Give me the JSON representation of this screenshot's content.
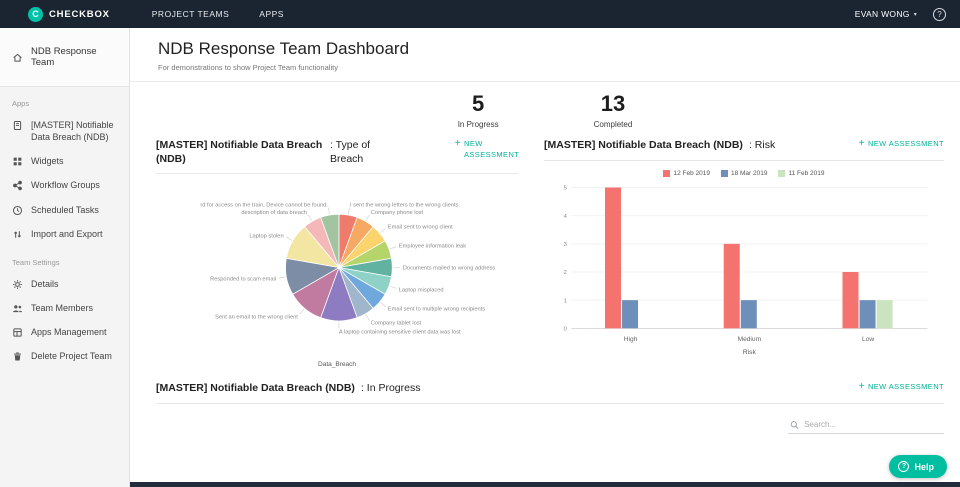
{
  "theme": {
    "accent": "#00b39b",
    "topbar_bg": "#1b2531",
    "sidebar_bg": "#f4f4f5"
  },
  "ui": {
    "plus": "+",
    "caret": "▾",
    "question": "?",
    "logo_letter": "C"
  },
  "topbar": {
    "brand": "CHECKBOX",
    "nav_items": [
      {
        "label": "PROJECT TEAMS"
      },
      {
        "label": "APPS"
      }
    ],
    "user": "EVAN WONG"
  },
  "sidebar": {
    "team": {
      "label": "NDB Response Team"
    },
    "sections": [
      {
        "label": "Apps",
        "items": [
          {
            "label": "[MASTER] Notifiable Data Breach (NDB)"
          },
          {
            "label": "Widgets"
          },
          {
            "label": "Workflow Groups"
          },
          {
            "label": "Scheduled Tasks"
          },
          {
            "label": "Import and Export"
          }
        ]
      },
      {
        "label": "Team Settings",
        "items": [
          {
            "label": "Details"
          },
          {
            "label": "Team Members"
          },
          {
            "label": "Apps Management"
          },
          {
            "label": "Delete Project Team"
          }
        ]
      }
    ]
  },
  "header": {
    "title": "NDB Response Team Dashboard",
    "subtitle": "For demonstrations to show Project Team functionality"
  },
  "stats": [
    {
      "value": "5",
      "label": "In Progress"
    },
    {
      "value": "13",
      "label": "Completed"
    }
  ],
  "panels": {
    "type_of_breach": {
      "title_bold": "[MASTER] Notifiable Data Breach (NDB)",
      "title_rest": ": Type of Breach",
      "action": "NEW ASSESSMENT"
    },
    "risk": {
      "title_bold": "[MASTER] Notifiable Data Breach (NDB)",
      "title_rest": ": Risk",
      "action": "NEW ASSESSMENT"
    },
    "in_progress": {
      "title_bold": "[MASTER] Notifiable Data Breach (NDB)",
      "title_rest": ": In Progress",
      "action": "NEW ASSESSMENT"
    }
  },
  "footer": {
    "search_placeholder": "Search...",
    "help_label": "Help"
  },
  "chart_data": [
    {
      "type": "pie",
      "title": "[MASTER] Notifiable Data Breach (NDB): Type of Breach",
      "xlabel": "Data_Breach",
      "labels": [
        "I sent the wrong letters to the wrong clients.",
        "Company phone lost",
        "Email sent to wrong client",
        "Employee information leak",
        "Documents mailed to wrong address",
        "Laptop misplaced",
        "Email sent to multiple wrong recipients",
        "Company tablet lost",
        "A laptop containing sensitive client data was lost",
        "Sent an email to the wrong client",
        "Responded to scam email",
        "Laptop stolen",
        "description of data breach",
        "rd for access on the train. Device cannot be found."
      ],
      "values": [
        1,
        1,
        1,
        1,
        1,
        1,
        1,
        1,
        2,
        2,
        2,
        2,
        1,
        1
      ],
      "colors": [
        "#ef7b6d",
        "#f5a963",
        "#fbd46d",
        "#b5d56a",
        "#62b2a2",
        "#8ed1c6",
        "#6fa8dc",
        "#9fb6cd",
        "#8e7cc3",
        "#c27ba0",
        "#7d8da6",
        "#f3e5a2",
        "#f4b8b8",
        "#a2c4a0"
      ]
    },
    {
      "type": "bar",
      "title": "[MASTER] Notifiable Data Breach (NDB): Risk",
      "categories": [
        "High",
        "Medium",
        "Low"
      ],
      "xlabel": "Risk",
      "ylim": [
        0,
        5
      ],
      "yticks": [
        0,
        1,
        2,
        3,
        4,
        5
      ],
      "legend_position": "top",
      "series": [
        {
          "name": "12 Feb 2019",
          "color": "#f4736e",
          "values": [
            5,
            3,
            2
          ]
        },
        {
          "name": "18 Mar 2019",
          "color": "#6e8fba",
          "values": [
            1,
            1,
            1
          ]
        },
        {
          "name": "11 Feb 2019",
          "color": "#cbe4c0",
          "values": [
            0,
            0,
            1
          ]
        }
      ]
    }
  ]
}
